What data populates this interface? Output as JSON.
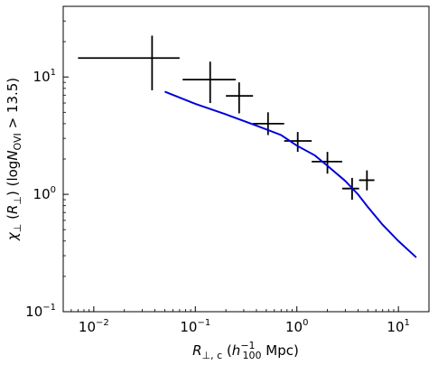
{
  "chart_data": {
    "type": "scatter",
    "title": "",
    "x_scale": "log",
    "y_scale": "log",
    "xlim": [
      0.005,
      20
    ],
    "ylim": [
      0.1,
      40
    ],
    "grid": false,
    "legend": "none",
    "x_ticks": [
      {
        "value": 0.01,
        "base": "10",
        "exp": "−2"
      },
      {
        "value": 0.1,
        "base": "10",
        "exp": "−1"
      },
      {
        "value": 1,
        "base": "10",
        "exp": "0"
      },
      {
        "value": 10,
        "base": "10",
        "exp": "1"
      }
    ],
    "y_ticks": [
      {
        "value": 0.1,
        "base": "10",
        "exp": "−1"
      },
      {
        "value": 1,
        "base": "10",
        "exp": "0"
      },
      {
        "value": 10,
        "base": "10",
        "exp": "1"
      }
    ],
    "xlabel": {
      "main": "R",
      "sub": "⊥, c",
      "paren_open": " (",
      "h": "h",
      "h_sup": "−1",
      "h_sub": "100",
      "unit": " Mpc)"
    },
    "ylabel": {
      "chi": "χ",
      "chi_sub": "⊥",
      "paren_open": " (",
      "r": "R",
      "r_sub": "⊥",
      "paren_close": ") (log",
      "n": "N",
      "n_sub": "OVI",
      "tail": " > 13.5)"
    },
    "series": [
      {
        "kind": "errorbar",
        "color": "#000000",
        "points": [
          {
            "x": 0.0375,
            "y": 14.5,
            "xlo": 0.007,
            "xhi": 0.07,
            "ylo": 7.7,
            "yhi": 22.5
          },
          {
            "x": 0.14,
            "y": 9.5,
            "xlo": 0.075,
            "xhi": 0.25,
            "ylo": 6.0,
            "yhi": 13.5
          },
          {
            "x": 0.27,
            "y": 6.9,
            "xlo": 0.2,
            "xhi": 0.37,
            "ylo": 4.9,
            "yhi": 9.0
          },
          {
            "x": 0.52,
            "y": 4.0,
            "xlo": 0.37,
            "xhi": 0.75,
            "ylo": 3.2,
            "yhi": 5.0
          },
          {
            "x": 1.02,
            "y": 2.85,
            "xlo": 0.75,
            "xhi": 1.4,
            "ylo": 2.3,
            "yhi": 3.4
          },
          {
            "x": 2.0,
            "y": 1.9,
            "xlo": 1.4,
            "xhi": 2.8,
            "ylo": 1.5,
            "yhi": 2.3
          },
          {
            "x": 3.5,
            "y": 1.12,
            "xlo": 2.8,
            "xhi": 4.1,
            "ylo": 0.9,
            "yhi": 1.38
          },
          {
            "x": 4.9,
            "y": 1.32,
            "xlo": 4.1,
            "xhi": 5.8,
            "ylo": 1.08,
            "yhi": 1.6
          }
        ]
      },
      {
        "kind": "line",
        "color": "#0000dd",
        "x": [
          0.05,
          0.1,
          0.2,
          0.4,
          0.7,
          1.0,
          1.5,
          2.0,
          3.0,
          4.0,
          5.0,
          7.0,
          10.0,
          15.0
        ],
        "y": [
          7.5,
          5.9,
          4.8,
          3.85,
          3.2,
          2.6,
          2.15,
          1.75,
          1.3,
          1.0,
          0.78,
          0.55,
          0.4,
          0.29
        ]
      }
    ]
  }
}
